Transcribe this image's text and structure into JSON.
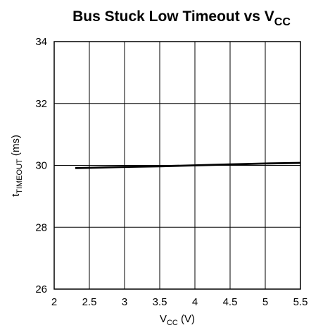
{
  "chart_data": {
    "type": "line",
    "title": {
      "main": "Bus Stuck Low Timeout vs V",
      "sub": "CC"
    },
    "xlabel": {
      "main": "V",
      "sub": "CC",
      "suffix": " (V)"
    },
    "ylabel": {
      "main": "t",
      "sub": "TIMEOUT",
      "suffix": " (ms)"
    },
    "xlim": [
      2,
      5.5
    ],
    "ylim": [
      26,
      34
    ],
    "xticks": [
      2,
      2.5,
      3,
      3.5,
      4,
      4.5,
      5,
      5.5
    ],
    "yticks": [
      26,
      28,
      30,
      32,
      34
    ],
    "xtick_labels": [
      "2",
      "2.5",
      "3",
      "3.5",
      "4",
      "4.5",
      "5",
      "5.5"
    ],
    "ytick_labels": [
      "26",
      "28",
      "30",
      "32",
      "34"
    ],
    "grid": true,
    "series": [
      {
        "color": "#000000",
        "x": [
          2.3,
          2.5,
          3.0,
          3.5,
          4.0,
          4.5,
          5.0,
          5.5
        ],
        "y": [
          29.91,
          29.92,
          29.95,
          29.97,
          30.0,
          30.03,
          30.06,
          30.08
        ]
      }
    ]
  }
}
